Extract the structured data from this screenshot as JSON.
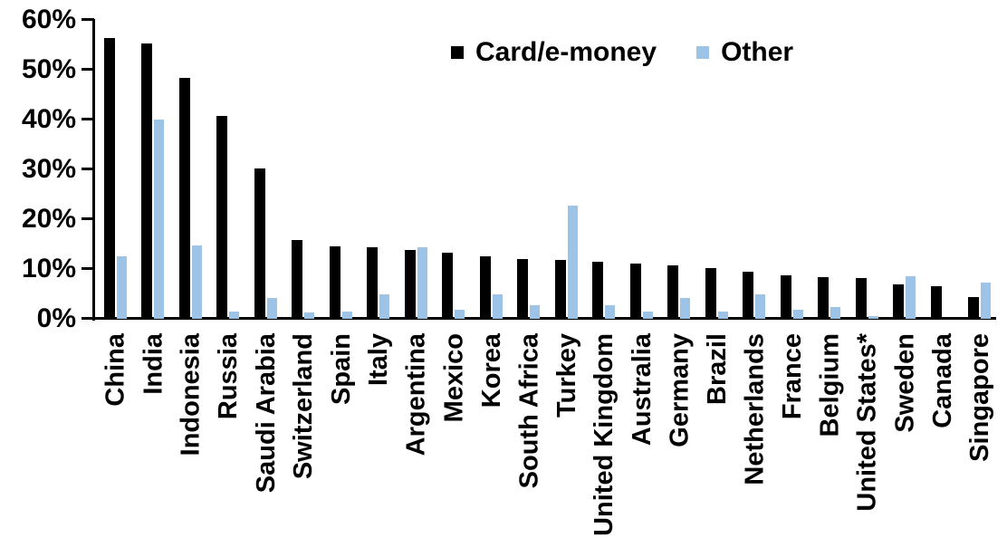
{
  "chart_data": {
    "type": "bar",
    "title": "",
    "categories": [
      "China",
      "India",
      "Indonesia",
      "Russia",
      "Saudi Arabia",
      "Switzerland",
      "Spain",
      "Italy",
      "Argentina",
      "Mexico",
      "Korea",
      "South Africa",
      "Turkey",
      "United Kingdom",
      "Australia",
      "Germany",
      "Brazil",
      "Netherlands",
      "France",
      "Belgium",
      "United States*",
      "Sweden",
      "Canada",
      "Singapore"
    ],
    "series": [
      {
        "name": "Card/e-money",
        "color": "#000000",
        "values": [
          56.3,
          55.2,
          48.4,
          40.8,
          30.2,
          15.8,
          14.5,
          14.4,
          13.8,
          13.3,
          12.5,
          12.0,
          11.9,
          11.4,
          11.1,
          10.8,
          10.2,
          9.5,
          8.8,
          8.4,
          8.1,
          7.0,
          6.5,
          4.4
        ]
      },
      {
        "name": "Other",
        "color": "#9DC3E6",
        "values": [
          12.6,
          40.0,
          14.7,
          1.4,
          4.2,
          1.2,
          1.5,
          4.9,
          14.3,
          1.8,
          4.9,
          2.7,
          22.8,
          2.8,
          1.4,
          4.2,
          1.5,
          5.0,
          1.8,
          2.4,
          0.5,
          8.5,
          0,
          7.2
        ]
      }
    ],
    "y_axis": {
      "ticks": [
        "0%",
        "10%",
        "20%",
        "30%",
        "40%",
        "50%",
        "60%"
      ],
      "min": 0,
      "max": 60,
      "unit": "%"
    },
    "x_axis": {
      "label_rotation_degrees": -90
    },
    "grid": false,
    "legend_position": "top-center"
  }
}
